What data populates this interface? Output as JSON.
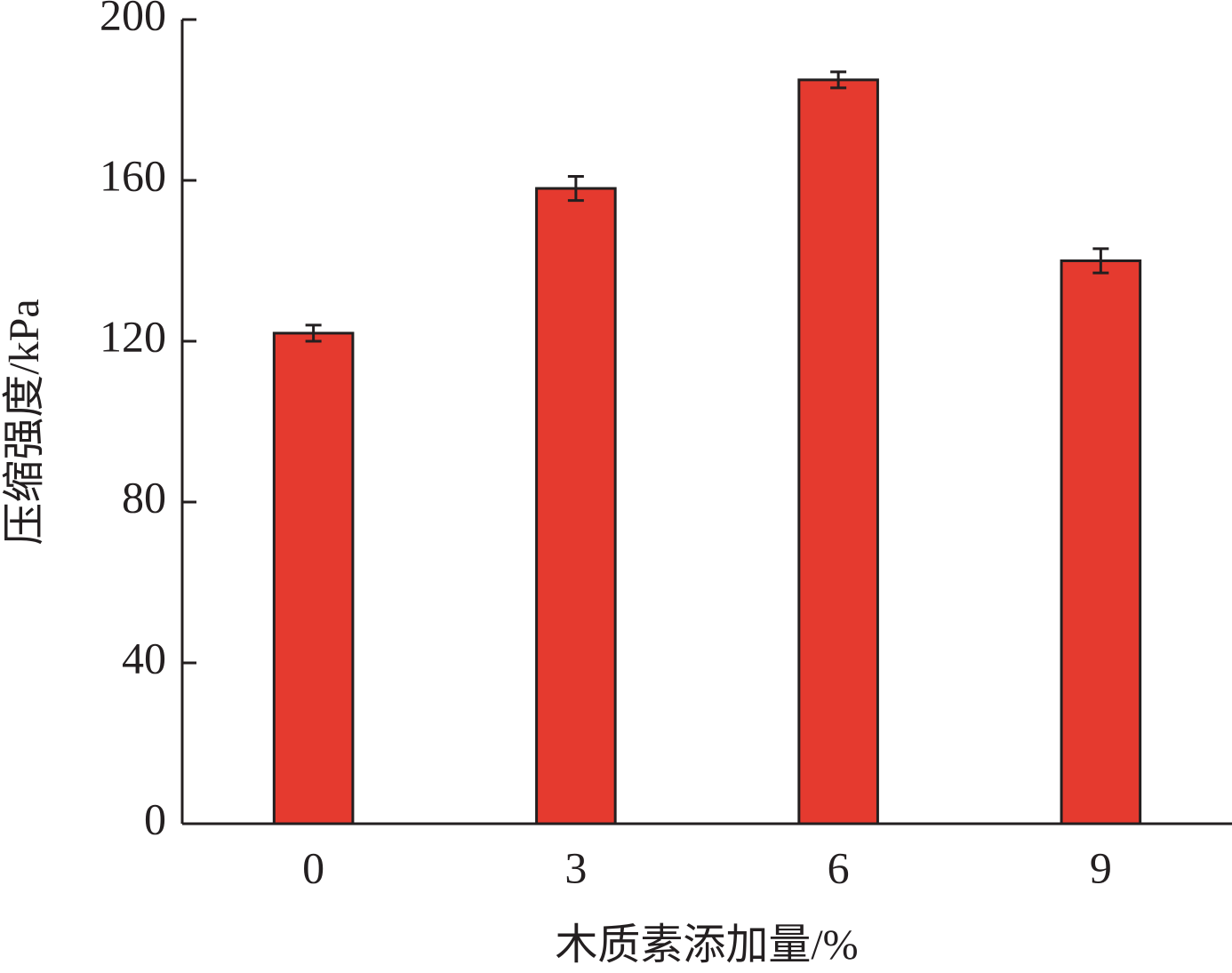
{
  "chart_data": {
    "type": "bar",
    "x_label": "木质素添加量/%",
    "y_label": "压缩强度/kPa",
    "categories": [
      "0",
      "3",
      "6",
      "9"
    ],
    "values": [
      122,
      158,
      185,
      140
    ],
    "errors": [
      2,
      3,
      2,
      3
    ],
    "color": "#e53a2f",
    "ylim": [
      0,
      200
    ],
    "yticks": [
      0,
      40,
      80,
      120,
      160,
      200
    ],
    "grid": false
  }
}
